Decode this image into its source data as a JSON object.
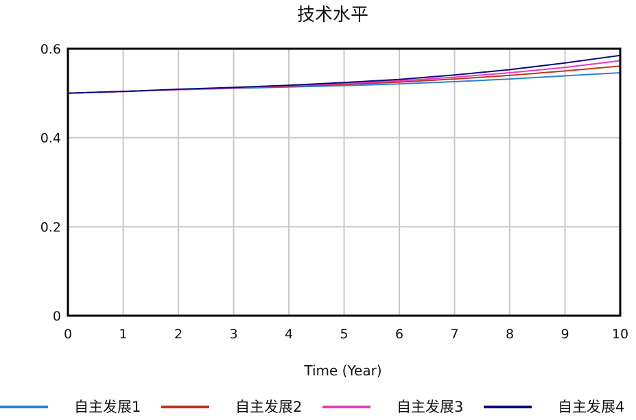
{
  "chart_data": {
    "type": "line",
    "title": "技术水平",
    "xlabel": "Time (Year)",
    "ylabel": "",
    "xlim": [
      0,
      10
    ],
    "ylim": [
      0,
      0.6
    ],
    "x_ticks": [
      "0",
      "1",
      "2",
      "3",
      "4",
      "5",
      "6",
      "7",
      "8",
      "9",
      "10"
    ],
    "y_ticks": [
      "0",
      "0.2",
      "0.4",
      "0.6"
    ],
    "grid": true,
    "legend_position": "bottom",
    "x": [
      0,
      1,
      2,
      3,
      4,
      5,
      6,
      7,
      8,
      9,
      10
    ],
    "series": [
      {
        "name": "自主发展1",
        "color": "#2c7fd8",
        "values": [
          0.5,
          0.504,
          0.508,
          0.511,
          0.514,
          0.517,
          0.521,
          0.526,
          0.532,
          0.539,
          0.546
        ]
      },
      {
        "name": "自主发展2",
        "color": "#c0341a",
        "values": [
          0.5,
          0.504,
          0.508,
          0.512,
          0.516,
          0.52,
          0.525,
          0.532,
          0.54,
          0.55,
          0.561
        ]
      },
      {
        "name": "自主发展3",
        "color": "#e93cc0",
        "values": [
          0.5,
          0.504,
          0.508,
          0.512,
          0.517,
          0.522,
          0.528,
          0.536,
          0.546,
          0.558,
          0.573
        ]
      },
      {
        "name": "自主发展4",
        "color": "#0b0b7d",
        "values": [
          0.5,
          0.504,
          0.509,
          0.513,
          0.518,
          0.524,
          0.531,
          0.541,
          0.553,
          0.568,
          0.585
        ]
      }
    ]
  }
}
